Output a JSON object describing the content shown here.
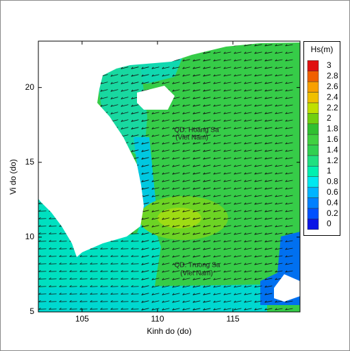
{
  "map": {
    "xlabel": "Kinh do (do)",
    "ylabel": "Vi do (do)",
    "xlim": [
      102.1,
      119.45
    ],
    "ylim": [
      5,
      23.1
    ],
    "xticks": [
      105,
      110,
      115
    ],
    "yticks": [
      5,
      10,
      15,
      20
    ],
    "annotations": [
      "QD. Hoang Sa",
      "(Viet Nam)",
      "QD. Truong Sa",
      "(Viet Nam)"
    ],
    "colorbar": {
      "title": "Hs(m)",
      "levels": [
        {
          "value": 0,
          "color": "#0a14e6"
        },
        {
          "value": 0.2,
          "color": "#0050ff"
        },
        {
          "value": 0.4,
          "color": "#0080ff"
        },
        {
          "value": 0.6,
          "color": "#00b4ff"
        },
        {
          "value": 0.8,
          "color": "#00e8f0"
        },
        {
          "value": 1,
          "color": "#00f0b0"
        },
        {
          "value": 1.2,
          "color": "#20e080"
        },
        {
          "value": 1.4,
          "color": "#30d050"
        },
        {
          "value": 1.6,
          "color": "#40d040"
        },
        {
          "value": 1.8,
          "color": "#30c030"
        },
        {
          "value": 2,
          "color": "#70d010"
        },
        {
          "value": 2.2,
          "color": "#c0e000"
        },
        {
          "value": 2.4,
          "color": "#f0c000"
        },
        {
          "value": 2.6,
          "color": "#f8a000"
        },
        {
          "value": 2.8,
          "color": "#f06000"
        },
        {
          "value": 3,
          "color": "#e01010"
        }
      ]
    }
  }
}
